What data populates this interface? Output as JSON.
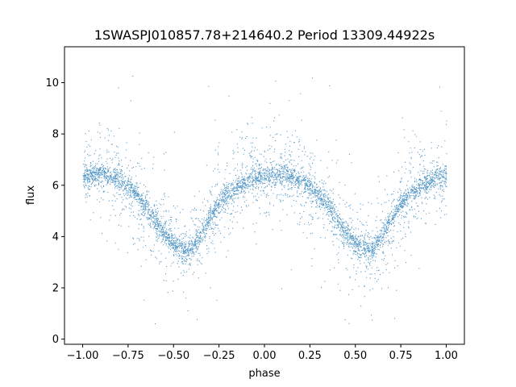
{
  "chart_data": {
    "type": "scatter",
    "title": "1SWASPJ010857.78+214640.2 Period 13309.44922s",
    "xlabel": "phase",
    "ylabel": "flux",
    "xlim": [
      -1.1,
      1.1
    ],
    "ylim": [
      -0.2,
      11.4
    ],
    "xticks": [
      -1.0,
      -0.75,
      -0.5,
      -0.25,
      0.0,
      0.25,
      0.5,
      0.75,
      1.0
    ],
    "xtick_labels": [
      "−1.00",
      "−0.75",
      "−0.50",
      "−0.25",
      "0.00",
      "0.25",
      "0.50",
      "0.75",
      "1.00"
    ],
    "yticks": [
      0,
      2,
      4,
      6,
      8,
      10
    ],
    "ytick_labels": [
      "0",
      "2",
      "4",
      "6",
      "8",
      "10"
    ],
    "grid": false,
    "legend": "none",
    "marker_color": "#1f77b4",
    "x_range": [
      -1.0,
      1.0
    ],
    "curve": {
      "x": [
        -1.0,
        -0.95,
        -0.9,
        -0.85,
        -0.8,
        -0.75,
        -0.7,
        -0.65,
        -0.6,
        -0.55,
        -0.5,
        -0.45,
        -0.42,
        -0.4,
        -0.35,
        -0.3,
        -0.25,
        -0.2,
        -0.15,
        -0.1,
        -0.05,
        0.0,
        0.05,
        0.1,
        0.15,
        0.2,
        0.25,
        0.3,
        0.35,
        0.4,
        0.45,
        0.5,
        0.55,
        0.58,
        0.6,
        0.65,
        0.7,
        0.75,
        0.8,
        0.85,
        0.9,
        0.95,
        1.0
      ],
      "y": [
        6.3,
        6.45,
        6.5,
        6.4,
        6.2,
        5.95,
        5.6,
        5.15,
        4.6,
        4.1,
        3.75,
        3.5,
        3.45,
        3.55,
        4.1,
        4.75,
        5.3,
        5.7,
        5.95,
        6.15,
        6.3,
        6.35,
        6.45,
        6.45,
        6.35,
        6.2,
        5.95,
        5.6,
        5.15,
        4.6,
        4.1,
        3.75,
        3.5,
        3.45,
        3.55,
        4.1,
        4.75,
        5.3,
        5.7,
        5.95,
        6.15,
        6.3,
        6.35
      ]
    },
    "band_halfwidth": 0.35,
    "scatter_sigma": 0.9,
    "outlier_fraction": 0.03
  }
}
